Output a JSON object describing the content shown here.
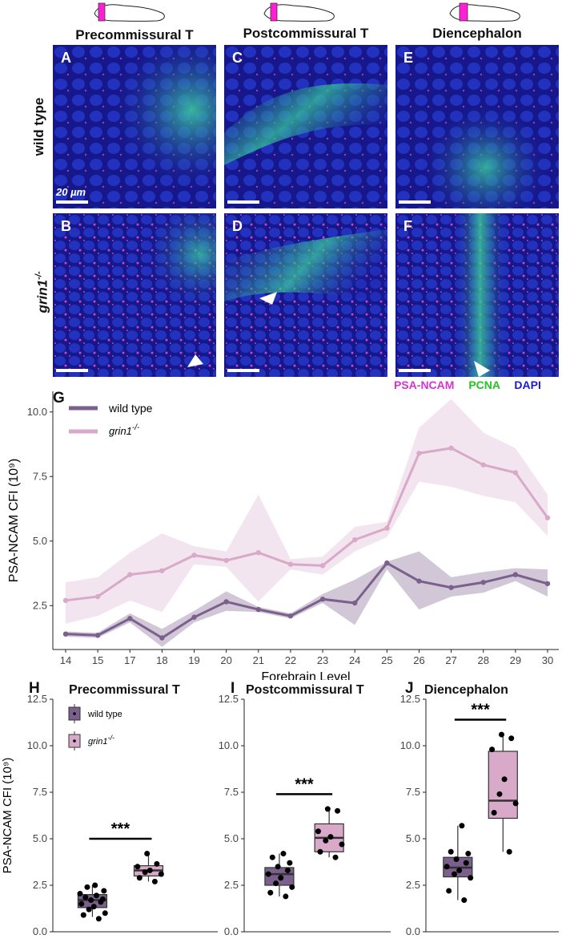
{
  "figure": {
    "columns": [
      "Precommissural T",
      "Postcommissural T",
      "Diencephalon"
    ],
    "rows": [
      "wild type",
      "grin1"
    ],
    "row_superscript": "-/-",
    "panel_letters": [
      "A",
      "B",
      "C",
      "D",
      "E",
      "F"
    ],
    "scale_label": "20 µm",
    "channels": [
      {
        "name": "PSA-NCAM",
        "color": "#d633d6"
      },
      {
        "name": "PCNA",
        "color": "#22c322"
      },
      {
        "name": "DAPI",
        "color": "#1a1adf"
      }
    ],
    "label_G": "G",
    "label_H": "H",
    "label_I": "I",
    "label_J": "J",
    "significance": "***"
  },
  "colors": {
    "wild_type": "#7b5f8c",
    "grin1": "#d8a9c9"
  },
  "chart_data": [
    {
      "type": "line",
      "xlabel": "Forebrain Level",
      "ylabel": "PSA-NCAM CFI (10⁹)",
      "x": [
        14,
        15,
        17,
        18,
        19,
        20,
        21,
        22,
        23,
        24,
        25,
        26,
        27,
        28,
        29,
        30
      ],
      "ylim": [
        0.8,
        10.8
      ],
      "yticks": [
        2.5,
        5.0,
        7.5,
        10.0
      ],
      "legend": "top-left",
      "series": [
        {
          "name": "wild type",
          "values": [
            1.4,
            1.35,
            2.0,
            1.25,
            2.05,
            2.65,
            2.35,
            2.1,
            2.75,
            2.6,
            4.15,
            3.45,
            3.2,
            3.4,
            3.7,
            3.35
          ],
          "lower": [
            1.3,
            1.25,
            1.85,
            0.9,
            1.85,
            2.3,
            2.25,
            2.0,
            2.6,
            1.75,
            3.9,
            2.35,
            2.85,
            3.0,
            3.45,
            2.85
          ],
          "upper": [
            1.5,
            1.45,
            2.2,
            1.6,
            2.3,
            3.05,
            2.45,
            2.2,
            2.95,
            3.5,
            4.2,
            4.6,
            3.6,
            3.8,
            3.95,
            3.9
          ]
        },
        {
          "name": "grin1",
          "values": [
            2.7,
            2.85,
            3.7,
            3.85,
            4.45,
            4.25,
            4.55,
            4.1,
            4.05,
            5.05,
            5.5,
            8.4,
            8.6,
            7.95,
            7.65,
            5.9
          ],
          "lower": [
            1.8,
            2.1,
            2.7,
            2.25,
            4.1,
            4.0,
            2.65,
            3.9,
            3.7,
            4.6,
            5.15,
            7.3,
            7.1,
            6.75,
            6.5,
            5.2
          ],
          "upper": [
            3.4,
            3.6,
            4.55,
            5.3,
            4.8,
            4.6,
            6.8,
            4.3,
            4.4,
            5.55,
            5.75,
            9.4,
            10.5,
            9.2,
            8.6,
            6.8
          ]
        }
      ]
    },
    {
      "type": "box",
      "title": "Precommissural T",
      "ylabel": "PSA-NCAM CFI (10⁹)",
      "ylim": [
        0,
        12.5
      ],
      "yticks": [
        0.0,
        2.5,
        5.0,
        7.5,
        10.0,
        12.5
      ],
      "legend": "top-left",
      "groups": [
        {
          "name": "wild type",
          "q1": 1.3,
          "median": 1.7,
          "q3": 2.0,
          "min": 0.8,
          "max": 2.5,
          "points": [
            0.7,
            0.9,
            1.0,
            1.2,
            1.35,
            1.5,
            1.6,
            1.7,
            1.75,
            1.85,
            1.95,
            2.05,
            2.2,
            2.4,
            2.5
          ]
        },
        {
          "name": "grin1",
          "q1": 3.0,
          "median": 3.3,
          "q3": 3.55,
          "min": 2.7,
          "max": 4.2,
          "points": [
            2.7,
            2.9,
            3.1,
            3.2,
            3.3,
            3.5,
            3.65,
            4.2
          ]
        }
      ],
      "significance": "***"
    },
    {
      "type": "box",
      "title": "Postcommissural T",
      "ylim": [
        0,
        12.5
      ],
      "yticks": [
        0.0,
        2.5,
        5.0,
        7.5,
        10.0,
        12.5
      ],
      "groups": [
        {
          "name": "wild type",
          "q1": 2.5,
          "median": 3.1,
          "q3": 3.45,
          "min": 1.9,
          "max": 4.2,
          "points": [
            1.9,
            2.1,
            2.4,
            2.6,
            2.9,
            3.1,
            3.3,
            3.5,
            3.7,
            4.0,
            4.2
          ]
        },
        {
          "name": "grin1",
          "q1": 4.3,
          "median": 5.05,
          "q3": 5.8,
          "min": 4.0,
          "max": 6.6,
          "points": [
            4.0,
            4.3,
            4.7,
            4.9,
            5.1,
            5.4,
            6.5,
            6.6
          ]
        }
      ],
      "significance": "***"
    },
    {
      "type": "box",
      "title": "Diencephalon",
      "ylim": [
        0,
        12.5
      ],
      "yticks": [
        0.0,
        2.5,
        5.0,
        7.5,
        10.0,
        12.5
      ],
      "groups": [
        {
          "name": "wild type",
          "q1": 2.95,
          "median": 3.45,
          "q3": 4.0,
          "min": 1.7,
          "max": 5.7,
          "points": [
            1.7,
            2.2,
            2.9,
            3.1,
            3.3,
            3.5,
            3.7,
            3.9,
            4.2,
            4.3,
            5.7
          ]
        },
        {
          "name": "grin1",
          "q1": 6.1,
          "median": 7.05,
          "q3": 9.7,
          "min": 4.3,
          "max": 10.6,
          "points": [
            4.3,
            6.4,
            6.9,
            7.4,
            8.2,
            9.8,
            10.4,
            10.6
          ]
        }
      ],
      "significance": "***"
    }
  ]
}
